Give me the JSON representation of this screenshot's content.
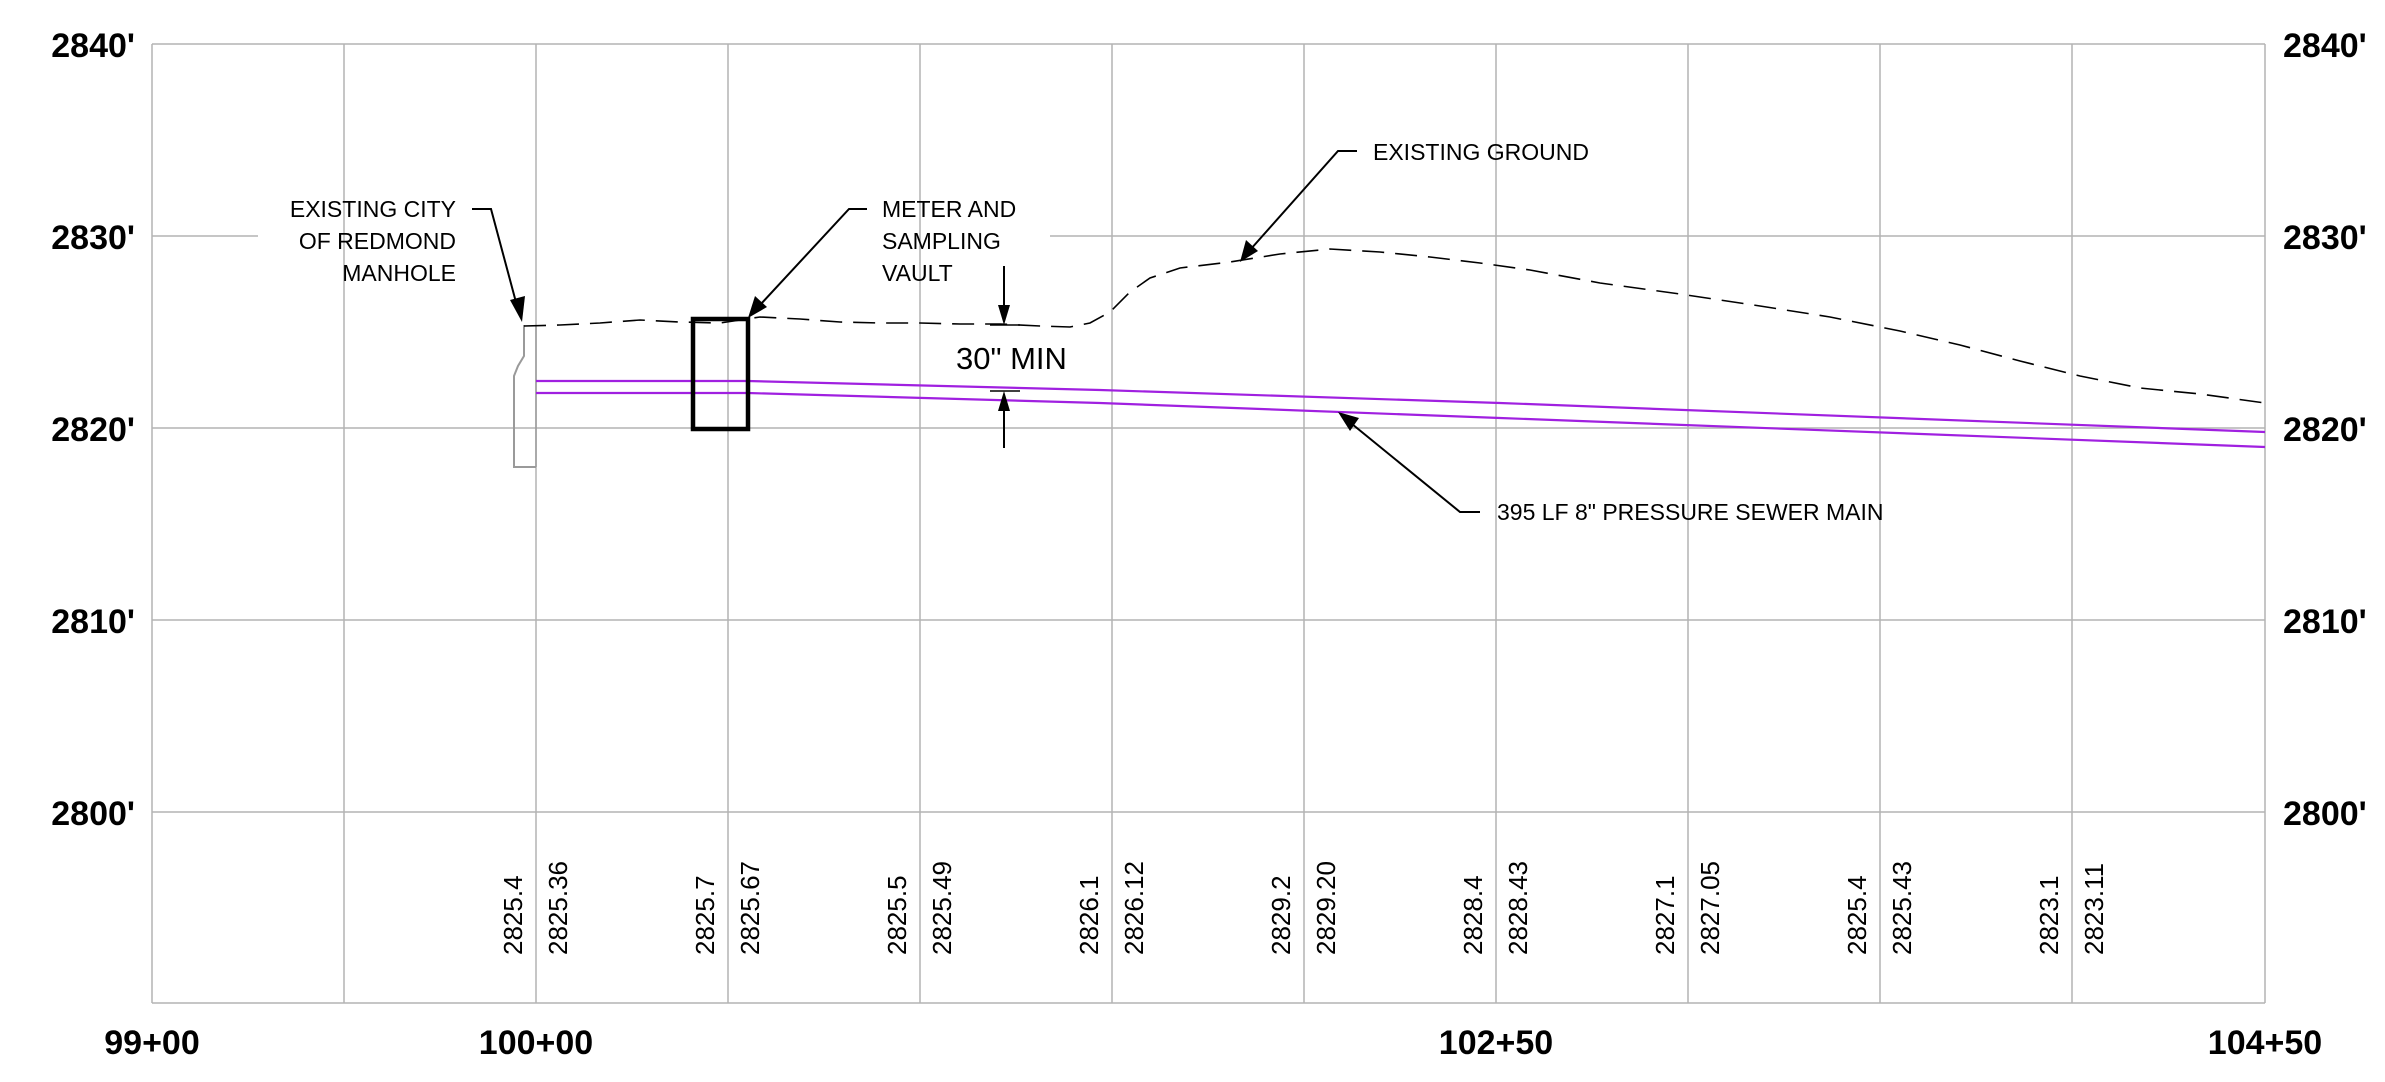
{
  "elevations": [
    "2840'",
    "2830'",
    "2820'",
    "2810'",
    "2800'"
  ],
  "stations": [
    "99+00",
    "100+00",
    "102+50",
    "104+50"
  ],
  "notes": {
    "manhole": [
      "EXISTING CITY",
      "OF REDMOND",
      "MANHOLE"
    ],
    "vault": [
      "METER AND",
      "SAMPLING",
      "VAULT"
    ],
    "ground": "EXISTING GROUND",
    "cover": "30\" MIN",
    "sewer": "395 LF 8\" PRESSURE SEWER MAIN"
  },
  "grade_values": [
    [
      "2825.4",
      "2825.36"
    ],
    [
      "2825.7",
      "2825.67"
    ],
    [
      "2825.5",
      "2825.49"
    ],
    [
      "2826.1",
      "2826.12"
    ],
    [
      "2829.2",
      "2829.20"
    ],
    [
      "2828.4",
      "2828.43"
    ],
    [
      "2827.1",
      "2827.05"
    ],
    [
      "2825.4",
      "2825.43"
    ],
    [
      "2823.1",
      "2823.11"
    ]
  ],
  "colors": {
    "pipe": "#a020e0",
    "grid": "#b3b3b3",
    "ground": "#000000"
  }
}
